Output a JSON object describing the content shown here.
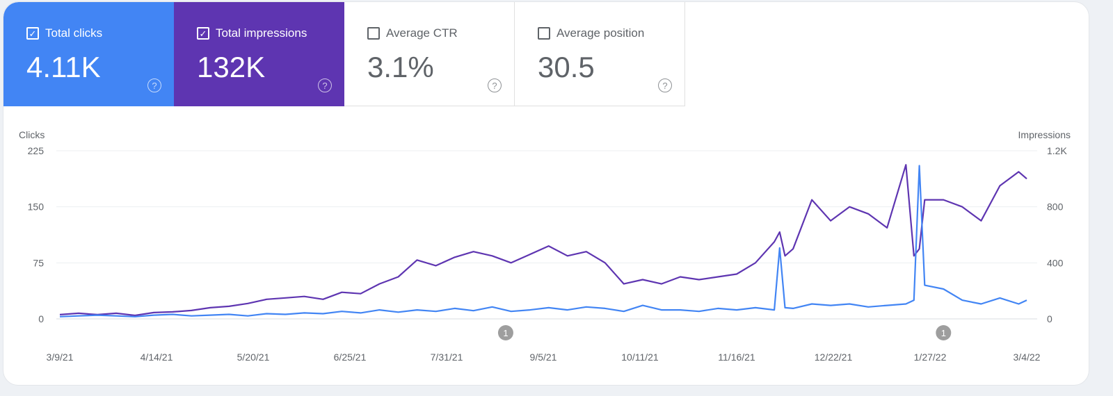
{
  "cards": [
    {
      "label": "Total clicks",
      "value": "4.11K",
      "checked": true,
      "color": "#4285f4"
    },
    {
      "label": "Total impressions",
      "value": "132K",
      "checked": true,
      "color": "#5e35b1"
    },
    {
      "label": "Average CTR",
      "value": "3.1%",
      "checked": false
    },
    {
      "label": "Average position",
      "value": "30.5",
      "checked": false
    }
  ],
  "chart_data": {
    "type": "line",
    "y_left": {
      "label": "Clicks",
      "ticks": [
        "0",
        "75",
        "150",
        "225"
      ],
      "range": [
        0,
        225
      ]
    },
    "y_right": {
      "label": "Impressions",
      "ticks": [
        "0",
        "400",
        "800",
        "1.2K"
      ],
      "range": [
        0,
        1200
      ]
    },
    "x_ticks": [
      "3/9/21",
      "4/14/21",
      "5/20/21",
      "6/25/21",
      "7/31/21",
      "9/5/21",
      "10/11/21",
      "11/16/21",
      "12/22/21",
      "1/27/22",
      "3/4/22"
    ],
    "grid": true,
    "annotations": [
      {
        "date": "2021-08-22",
        "label": "1"
      },
      {
        "date": "2022-02-01",
        "label": "1"
      }
    ],
    "x": [
      "2021-03-09",
      "2021-03-16",
      "2021-03-23",
      "2021-03-30",
      "2021-04-06",
      "2021-04-13",
      "2021-04-20",
      "2021-04-27",
      "2021-05-04",
      "2021-05-11",
      "2021-05-18",
      "2021-05-25",
      "2021-06-01",
      "2021-06-08",
      "2021-06-15",
      "2021-06-22",
      "2021-06-29",
      "2021-07-06",
      "2021-07-13",
      "2021-07-20",
      "2021-07-27",
      "2021-08-03",
      "2021-08-10",
      "2021-08-17",
      "2021-08-24",
      "2021-08-31",
      "2021-09-07",
      "2021-09-14",
      "2021-09-21",
      "2021-09-28",
      "2021-10-05",
      "2021-10-12",
      "2021-10-19",
      "2021-10-26",
      "2021-11-02",
      "2021-11-09",
      "2021-11-16",
      "2021-11-23",
      "2021-11-30",
      "2021-12-02",
      "2021-12-04",
      "2021-12-07",
      "2021-12-14",
      "2021-12-21",
      "2021-12-28",
      "2022-01-04",
      "2022-01-11",
      "2022-01-18",
      "2022-01-21",
      "2022-01-23",
      "2022-01-25",
      "2022-02-01",
      "2022-02-08",
      "2022-02-15",
      "2022-02-22",
      "2022-03-01",
      "2022-03-04"
    ],
    "series": [
      {
        "name": "Clicks",
        "axis": "left",
        "color": "#4285f4",
        "values": [
          3,
          4,
          5,
          4,
          3,
          5,
          6,
          4,
          5,
          6,
          4,
          7,
          6,
          8,
          7,
          10,
          8,
          12,
          9,
          12,
          10,
          14,
          11,
          16,
          10,
          12,
          15,
          12,
          16,
          14,
          10,
          18,
          12,
          12,
          10,
          14,
          12,
          15,
          12,
          95,
          15,
          14,
          20,
          18,
          20,
          16,
          18,
          20,
          25,
          205,
          45,
          40,
          25,
          20,
          28,
          20,
          25
        ]
      },
      {
        "name": "Impressions",
        "axis": "right",
        "color": "#5e35b1",
        "values": [
          30,
          40,
          30,
          40,
          25,
          45,
          50,
          60,
          80,
          90,
          110,
          140,
          150,
          160,
          140,
          190,
          180,
          250,
          300,
          420,
          380,
          440,
          480,
          450,
          400,
          460,
          520,
          450,
          480,
          400,
          250,
          280,
          250,
          300,
          280,
          300,
          320,
          400,
          550,
          620,
          450,
          500,
          850,
          700,
          800,
          750,
          650,
          1100,
          450,
          500,
          850,
          850,
          800,
          700,
          950,
          1050,
          1000
        ]
      }
    ]
  }
}
